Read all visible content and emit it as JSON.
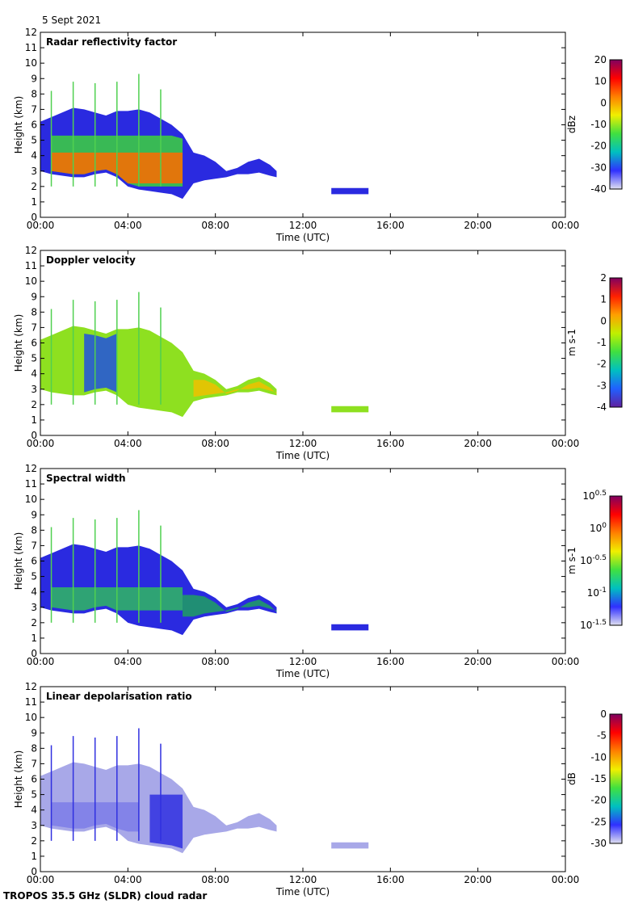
{
  "date": "5 Sept 2021",
  "footer": "TROPOS 35.5 GHz (SLDR) cloud radar",
  "chart_data": [
    {
      "type": "heatmap",
      "title": "Radar reflectivity factor",
      "xlabel": "Time (UTC)",
      "ylabel": "Height (km)",
      "xlim": [
        0,
        24
      ],
      "ylim": [
        0,
        12
      ],
      "xticks": [
        "00:00",
        "04:00",
        "08:00",
        "12:00",
        "16:00",
        "20:00",
        "00:00"
      ],
      "yticks": [
        "0",
        "1",
        "2",
        "3",
        "4",
        "5",
        "6",
        "7",
        "8",
        "9",
        "10",
        "11",
        "12"
      ],
      "colorbar": {
        "label": "dBz",
        "ticks": [
          "-40",
          "-30",
          "-20",
          "-10",
          "0",
          "10",
          "20"
        ],
        "range": [
          -40,
          20
        ]
      },
      "fill": "#2a2ae0",
      "core": {
        "color": "#ff6a00",
        "t": [
          0.5,
          6.7
        ],
        "base": 2.2,
        "top": 4.2
      },
      "mid": {
        "color": "#3cd23c",
        "t": [
          0.3,
          6.5
        ],
        "base": 2.0,
        "top": 5.3
      }
    },
    {
      "type": "heatmap",
      "title": "Doppler velocity",
      "xlabel": "Time (UTC)",
      "ylabel": "Height (km)",
      "xlim": [
        0,
        24
      ],
      "ylim": [
        0,
        12
      ],
      "xticks": [
        "00:00",
        "04:00",
        "08:00",
        "12:00",
        "16:00",
        "20:00",
        "00:00"
      ],
      "yticks": [
        "0",
        "1",
        "2",
        "3",
        "4",
        "5",
        "6",
        "7",
        "8",
        "9",
        "10",
        "11",
        "12"
      ],
      "colorbar": {
        "label": "m s-1",
        "ticks": [
          "-4",
          "-3",
          "-2",
          "-1",
          "0",
          "1",
          "2"
        ],
        "range": [
          -4,
          2
        ]
      },
      "fill": "#8ee020",
      "core": {
        "color": "#2050e0",
        "t": [
          1.6,
          3.6
        ],
        "base": 2.6,
        "top": 6.6
      },
      "mid": {
        "color": "#f0c000",
        "t": [
          6.6,
          10.8
        ],
        "base": 2.5,
        "top": 3.6
      }
    },
    {
      "type": "heatmap",
      "title": "Spectral width",
      "xlabel": "Time (UTC)",
      "ylabel": "Height (km)",
      "xlim": [
        0,
        24
      ],
      "ylim": [
        0,
        12
      ],
      "xticks": [
        "00:00",
        "04:00",
        "08:00",
        "12:00",
        "16:00",
        "20:00",
        "00:00"
      ],
      "yticks": [
        "0",
        "1",
        "2",
        "3",
        "4",
        "5",
        "6",
        "7",
        "8",
        "9",
        "10",
        "11",
        "12"
      ],
      "colorbar": {
        "label": "m s-1",
        "ticks": [
          "10^-1.5",
          "10^-1",
          "10^-0.5",
          "10^0",
          "10^0.5"
        ],
        "range": [
          -1.5,
          0.5
        ]
      },
      "fill": "#2a2ae0",
      "core": {
        "color": "#1fa060",
        "t": [
          6.3,
          10.8
        ],
        "base": 2.4,
        "top": 3.8
      },
      "mid": {
        "color": "#30b860",
        "t": [
          0.3,
          6.5
        ],
        "base": 2.8,
        "top": 4.3
      }
    },
    {
      "type": "heatmap",
      "title": "Linear depolarisation ratio",
      "xlabel": "Time (UTC)",
      "ylabel": "Height (km)",
      "xlim": [
        0,
        24
      ],
      "ylim": [
        0,
        12
      ],
      "xticks": [
        "00:00",
        "04:00",
        "08:00",
        "12:00",
        "16:00",
        "20:00",
        "00:00"
      ],
      "yticks": [
        "0",
        "1",
        "2",
        "3",
        "4",
        "5",
        "6",
        "7",
        "8",
        "9",
        "10",
        "11",
        "12"
      ],
      "colorbar": {
        "label": "dB",
        "ticks": [
          "-30",
          "-25",
          "-20",
          "-15",
          "-10",
          "-5",
          "0"
        ],
        "range": [
          -30,
          0
        ]
      },
      "fill": "#a8a8e8",
      "core": {
        "color": "#3030e0",
        "t": [
          5.0,
          6.8
        ],
        "base": 1.5,
        "top": 5.0
      },
      "mid": {
        "color": "#7c7ce8",
        "t": [
          0.3,
          4.5
        ],
        "base": 2.6,
        "top": 4.5
      }
    }
  ],
  "cloud": {
    "t": [
      0,
      0.5,
      1,
      1.5,
      2,
      2.5,
      3,
      3.5,
      4,
      4.5,
      5,
      5.5,
      6,
      6.5,
      7,
      7.5,
      8,
      8.5,
      9,
      9.5,
      10,
      10.5,
      10.8
    ],
    "top": [
      6.2,
      6.5,
      6.8,
      7.1,
      7,
      6.8,
      6.6,
      6.9,
      6.9,
      7,
      6.8,
      6.4,
      6,
      5.4,
      4.2,
      4,
      3.6,
      3.0,
      3.2,
      3.6,
      3.8,
      3.4,
      3.0
    ],
    "base": [
      3.0,
      2.8,
      2.7,
      2.6,
      2.6,
      2.8,
      2.9,
      2.6,
      2.0,
      1.8,
      1.7,
      1.6,
      1.5,
      1.2,
      2.2,
      2.4,
      2.5,
      2.6,
      2.8,
      2.8,
      2.9,
      2.7,
      2.6
    ]
  },
  "low_cloud": {
    "t": [
      13.3,
      15.0
    ],
    "base": 1.5,
    "top": 1.9
  },
  "spikes": {
    "t": [
      0.5,
      1.5,
      2.5,
      3.5,
      4.5,
      5.5
    ],
    "top": [
      8.2,
      8.8,
      8.7,
      8.8,
      9.3,
      8.3
    ]
  }
}
